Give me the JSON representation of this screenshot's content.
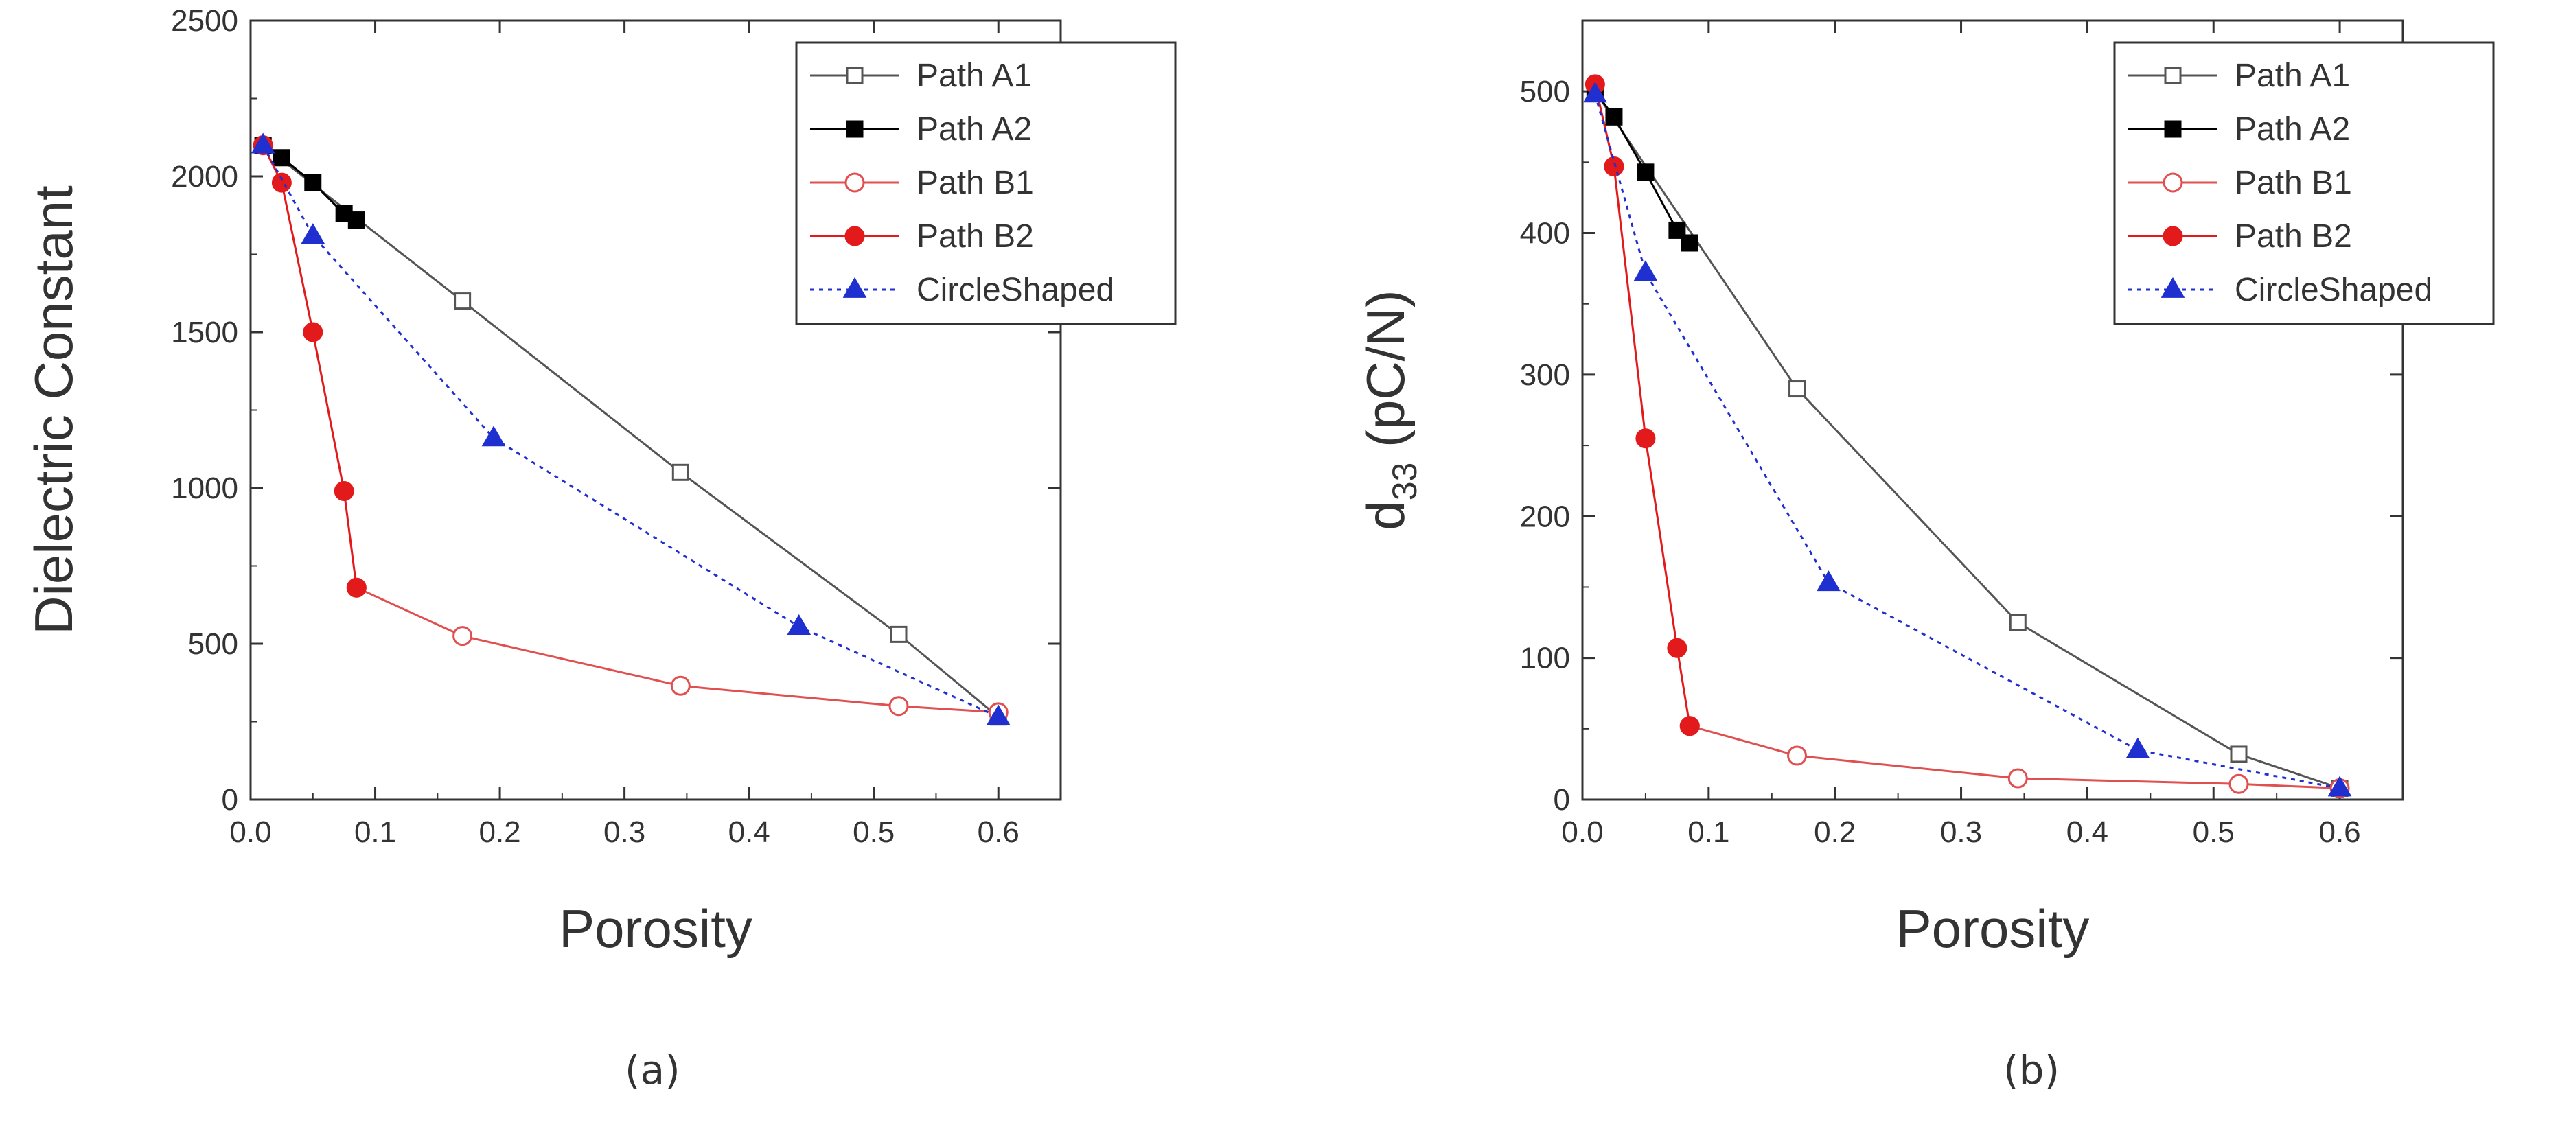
{
  "chart_data": [
    {
      "type": "line",
      "panel_label": "(a)",
      "xlabel": "Porosity",
      "ylabel": "Dielectric Constant",
      "xlim": [
        0.0,
        0.65
      ],
      "ylim": [
        0,
        2500
      ],
      "xticks": [
        "0.0",
        "0.1",
        "0.2",
        "0.3",
        "0.4",
        "0.5",
        "0.6"
      ],
      "yticks": [
        "0",
        "500",
        "1000",
        "1500",
        "2000",
        "2500"
      ],
      "legend_position": "top-right",
      "series": [
        {
          "name": "Path A1",
          "marker": "square-open",
          "color": "#555555",
          "line": "solid",
          "x": [
            0.01,
            0.17,
            0.345,
            0.52,
            0.6
          ],
          "y": [
            2100,
            1600,
            1050,
            530,
            265
          ]
        },
        {
          "name": "Path A2",
          "marker": "square-filled",
          "color": "#000000",
          "line": "solid",
          "x": [
            0.01,
            0.025,
            0.05,
            0.075,
            0.085
          ],
          "y": [
            2100,
            2060,
            1980,
            1880,
            1860
          ]
        },
        {
          "name": "Path B1",
          "marker": "circle-open",
          "color": "#e05050",
          "line": "solid",
          "x": [
            0.085,
            0.17,
            0.345,
            0.52,
            0.6
          ],
          "y": [
            680,
            525,
            365,
            300,
            280
          ]
        },
        {
          "name": "Path B2",
          "marker": "circle-filled",
          "color": "#e31a1c",
          "line": "solid",
          "x": [
            0.01,
            0.025,
            0.05,
            0.075,
            0.085
          ],
          "y": [
            2100,
            1980,
            1500,
            990,
            680
          ]
        },
        {
          "name": "CircleShaped",
          "marker": "triangle-filled",
          "color": "#1f2fd0",
          "line": "dotted",
          "x": [
            0.01,
            0.05,
            0.195,
            0.44,
            0.6
          ],
          "y": [
            2100,
            1810,
            1160,
            555,
            265
          ]
        }
      ]
    },
    {
      "type": "line",
      "panel_label": "(b)",
      "xlabel": "Porosity",
      "ylabel": "d33 (pC/N)",
      "ylabel_parts": {
        "main": "d",
        "sub": "33",
        "unit": " (pC/N)"
      },
      "xlim": [
        0.0,
        0.65
      ],
      "ylim": [
        0,
        550
      ],
      "xticks": [
        "0.0",
        "0.1",
        "0.2",
        "0.3",
        "0.4",
        "0.5",
        "0.6"
      ],
      "yticks": [
        "0",
        "100",
        "200",
        "300",
        "400",
        "500"
      ],
      "legend_position": "top-right",
      "series": [
        {
          "name": "Path A1",
          "marker": "square-open",
          "color": "#555555",
          "line": "solid",
          "x": [
            0.01,
            0.17,
            0.345,
            0.52,
            0.6
          ],
          "y": [
            500,
            290,
            125,
            32,
            8
          ]
        },
        {
          "name": "Path A2",
          "marker": "square-filled",
          "color": "#000000",
          "line": "solid",
          "x": [
            0.01,
            0.025,
            0.05,
            0.075,
            0.085
          ],
          "y": [
            500,
            482,
            443,
            402,
            393
          ]
        },
        {
          "name": "Path B1",
          "marker": "circle-open",
          "color": "#e05050",
          "line": "solid",
          "x": [
            0.085,
            0.17,
            0.345,
            0.52,
            0.6
          ],
          "y": [
            52,
            31,
            15,
            11,
            8
          ]
        },
        {
          "name": "Path B2",
          "marker": "circle-filled",
          "color": "#e31a1c",
          "line": "solid",
          "x": [
            0.01,
            0.025,
            0.05,
            0.075,
            0.085
          ],
          "y": [
            505,
            447,
            255,
            107,
            52
          ]
        },
        {
          "name": "CircleShaped",
          "marker": "triangle-filled",
          "color": "#1f2fd0",
          "line": "dotted",
          "x": [
            0.01,
            0.05,
            0.195,
            0.44,
            0.6
          ],
          "y": [
            498,
            372,
            153,
            35,
            8
          ]
        }
      ]
    }
  ]
}
